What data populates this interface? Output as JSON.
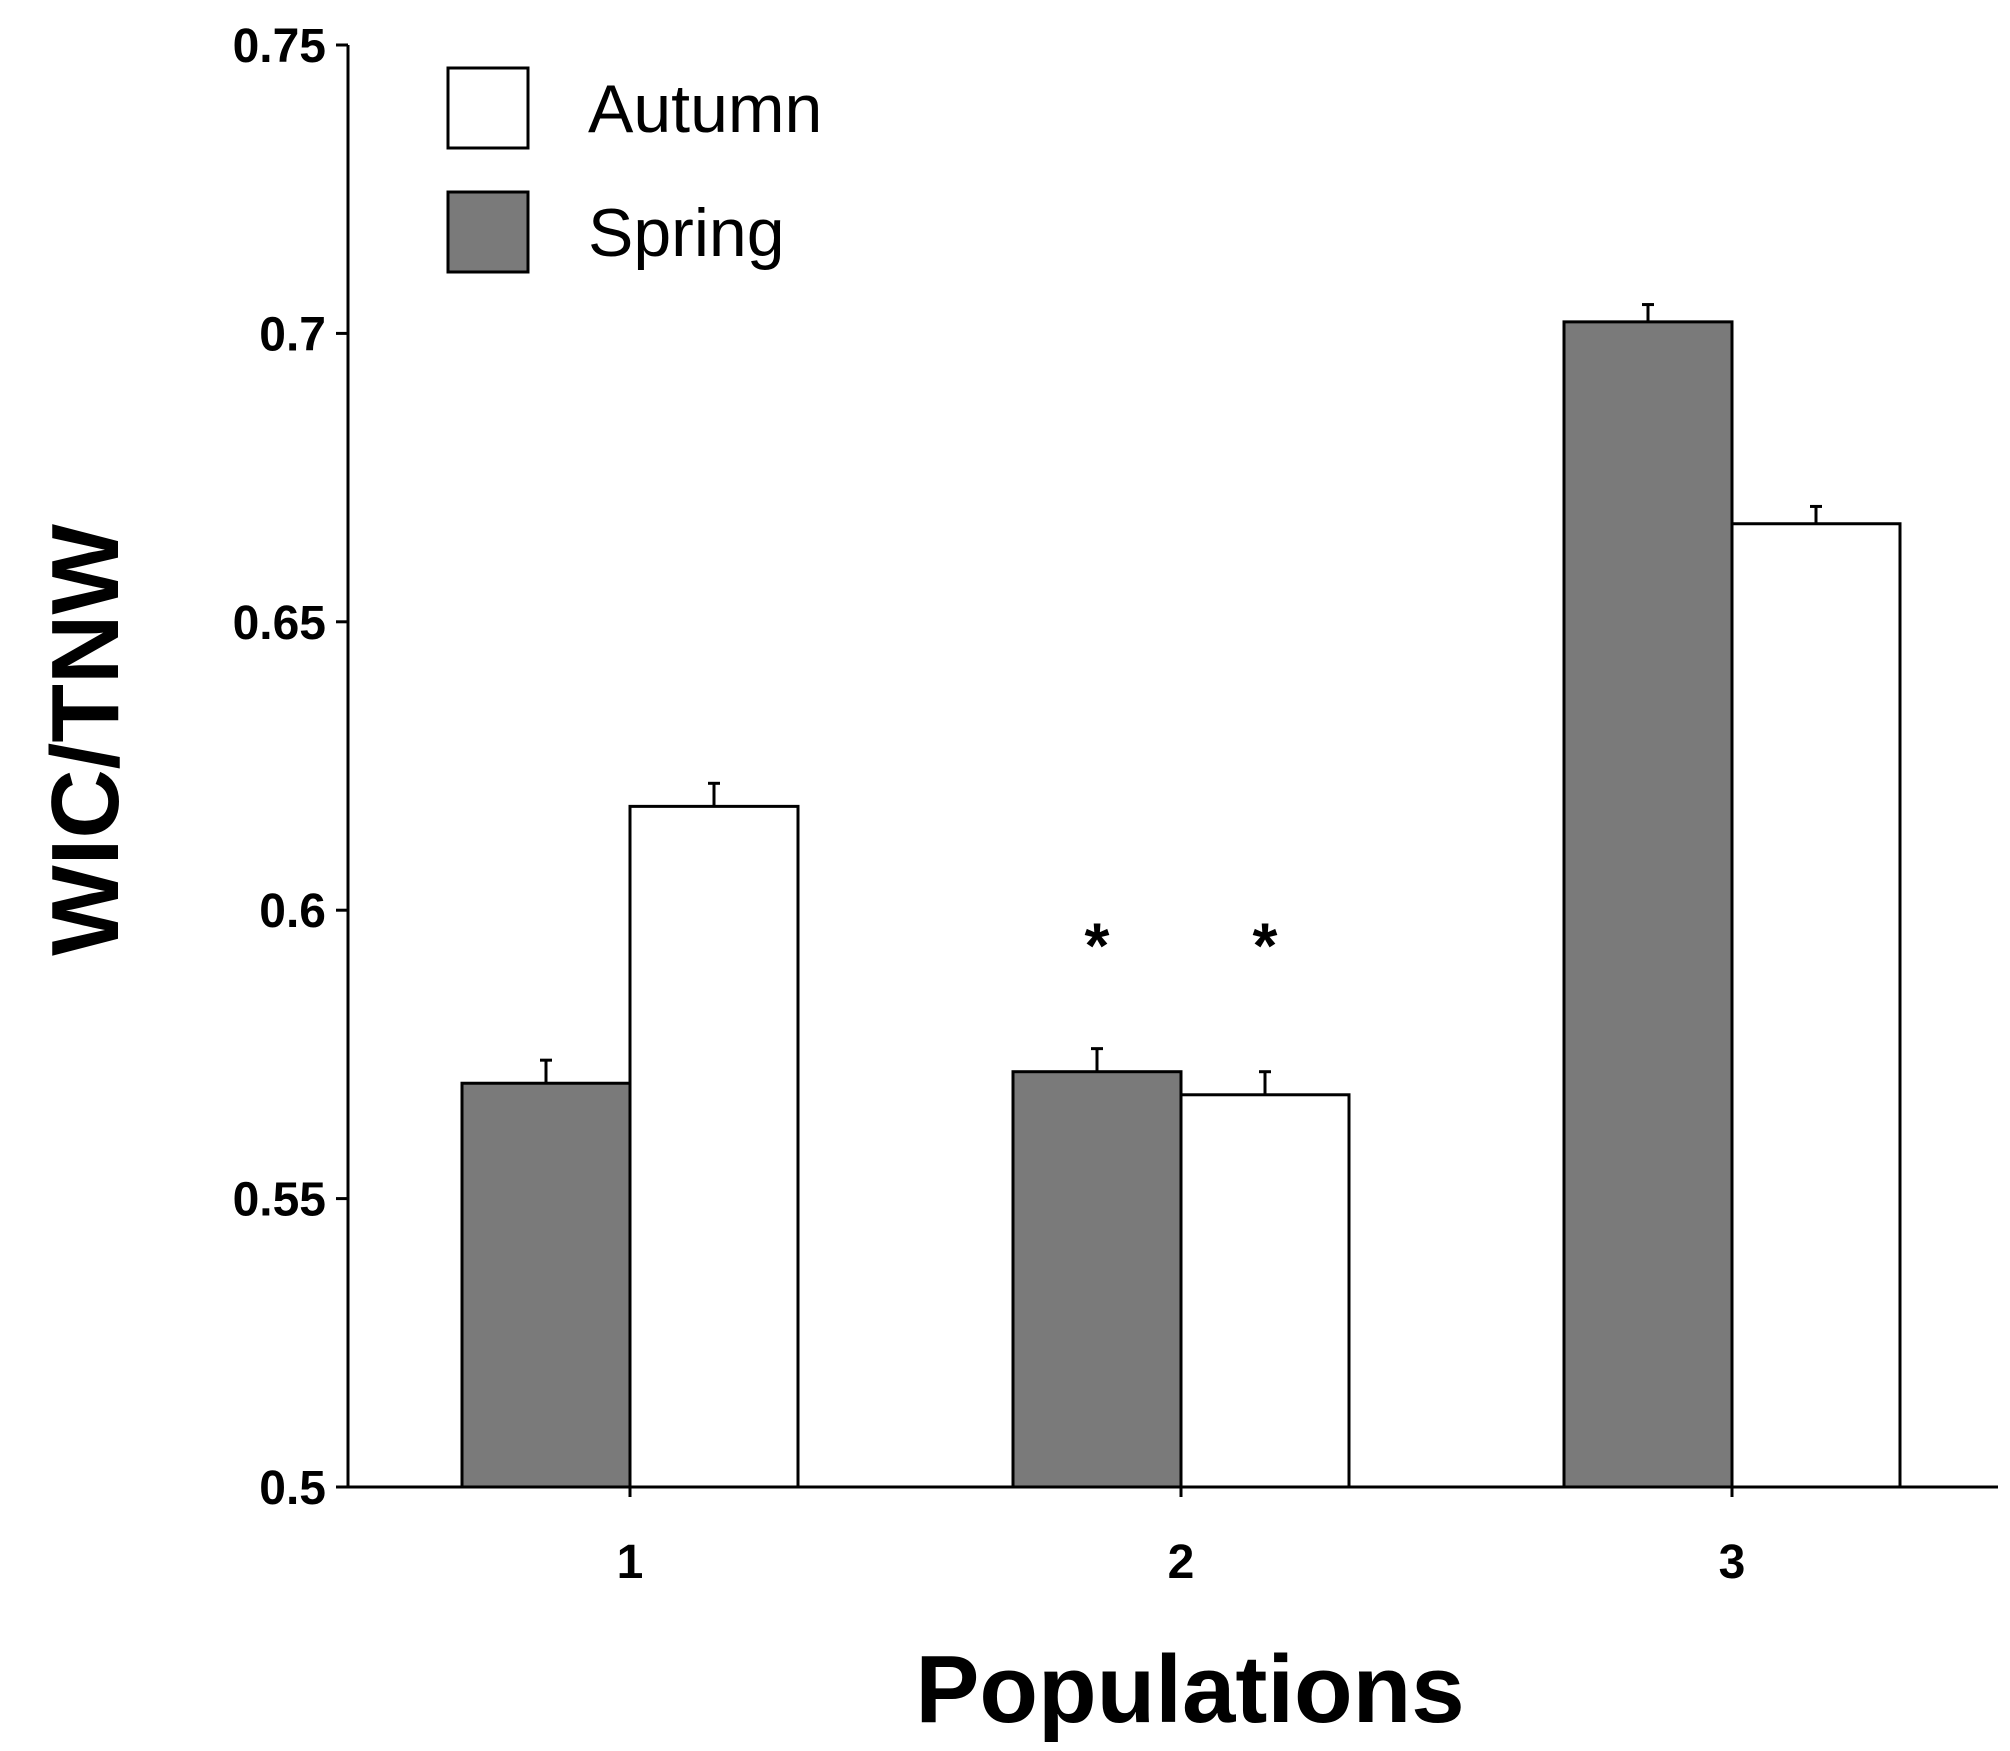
{
  "chart_data": {
    "type": "bar",
    "title": "",
    "xlabel": "Populations",
    "ylabel": "WIC/TNW",
    "categories": [
      "1",
      "2",
      "3"
    ],
    "ylim": [
      0.5,
      0.75
    ],
    "yticks": [
      "0.5",
      "0.55",
      "0.6",
      "0.65",
      "0.7",
      "0.75"
    ],
    "ytick_values": [
      0.5,
      0.55,
      0.6,
      0.65,
      0.7,
      0.75
    ],
    "grid": false,
    "legend_position": "top-left",
    "series": [
      {
        "name": "Spring",
        "color": "#7a7a7a",
        "values": [
          0.57,
          0.572,
          0.702
        ],
        "errors": [
          0.004,
          0.004,
          0.003
        ],
        "annotations": [
          "",
          "*",
          ""
        ]
      },
      {
        "name": "Autumn",
        "color": "#ffffff",
        "values": [
          0.618,
          0.568,
          0.667
        ],
        "errors": [
          0.004,
          0.004,
          0.003
        ],
        "annotations": [
          "",
          "*",
          ""
        ]
      }
    ]
  }
}
